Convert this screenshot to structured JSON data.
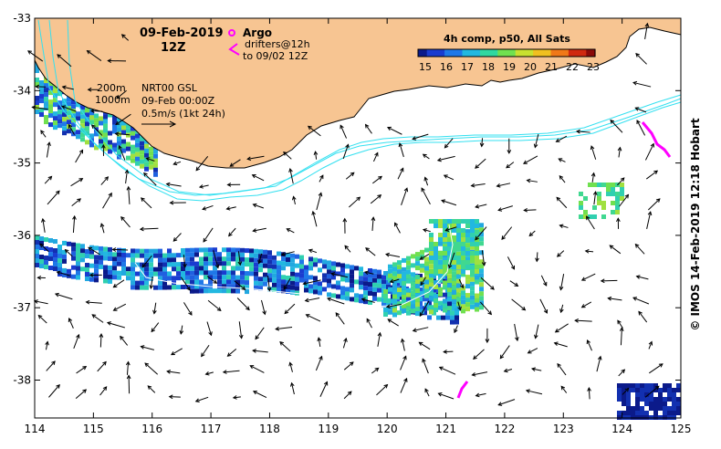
{
  "map": {
    "date_title": "09-Feb-2019",
    "time_title": "12Z",
    "argo_label": "Argo",
    "drifters_label": "drifters@12h",
    "drifters_sub": "to 09/02 12Z",
    "isobath_200": "200m",
    "isobath_1000": "1000m",
    "product_line1": "NRT00 GSL",
    "product_line2": "09-Feb 00:00Z",
    "scale_label": "0.5m/s (1kt 24h)",
    "colorbar_title": "4h comp, p50, All Sats",
    "colorbar_ticks": [
      "15",
      "16",
      "17",
      "18",
      "19",
      "20",
      "21",
      "22",
      "23"
    ],
    "x_ticks": [
      "114",
      "115",
      "116",
      "117",
      "118",
      "119",
      "120",
      "121",
      "122",
      "123",
      "124",
      "125"
    ],
    "y_ticks": [
      "-33",
      "-34",
      "-35",
      "-36",
      "-37",
      "-38"
    ],
    "credit": "© IMOS 14-Feb-2019 12:18 Hobart"
  },
  "colors": {
    "land": "#f7c592",
    "isobath": "#34e0f0",
    "drifter": "#ff00ff",
    "argo": "#ff00ff"
  }
}
